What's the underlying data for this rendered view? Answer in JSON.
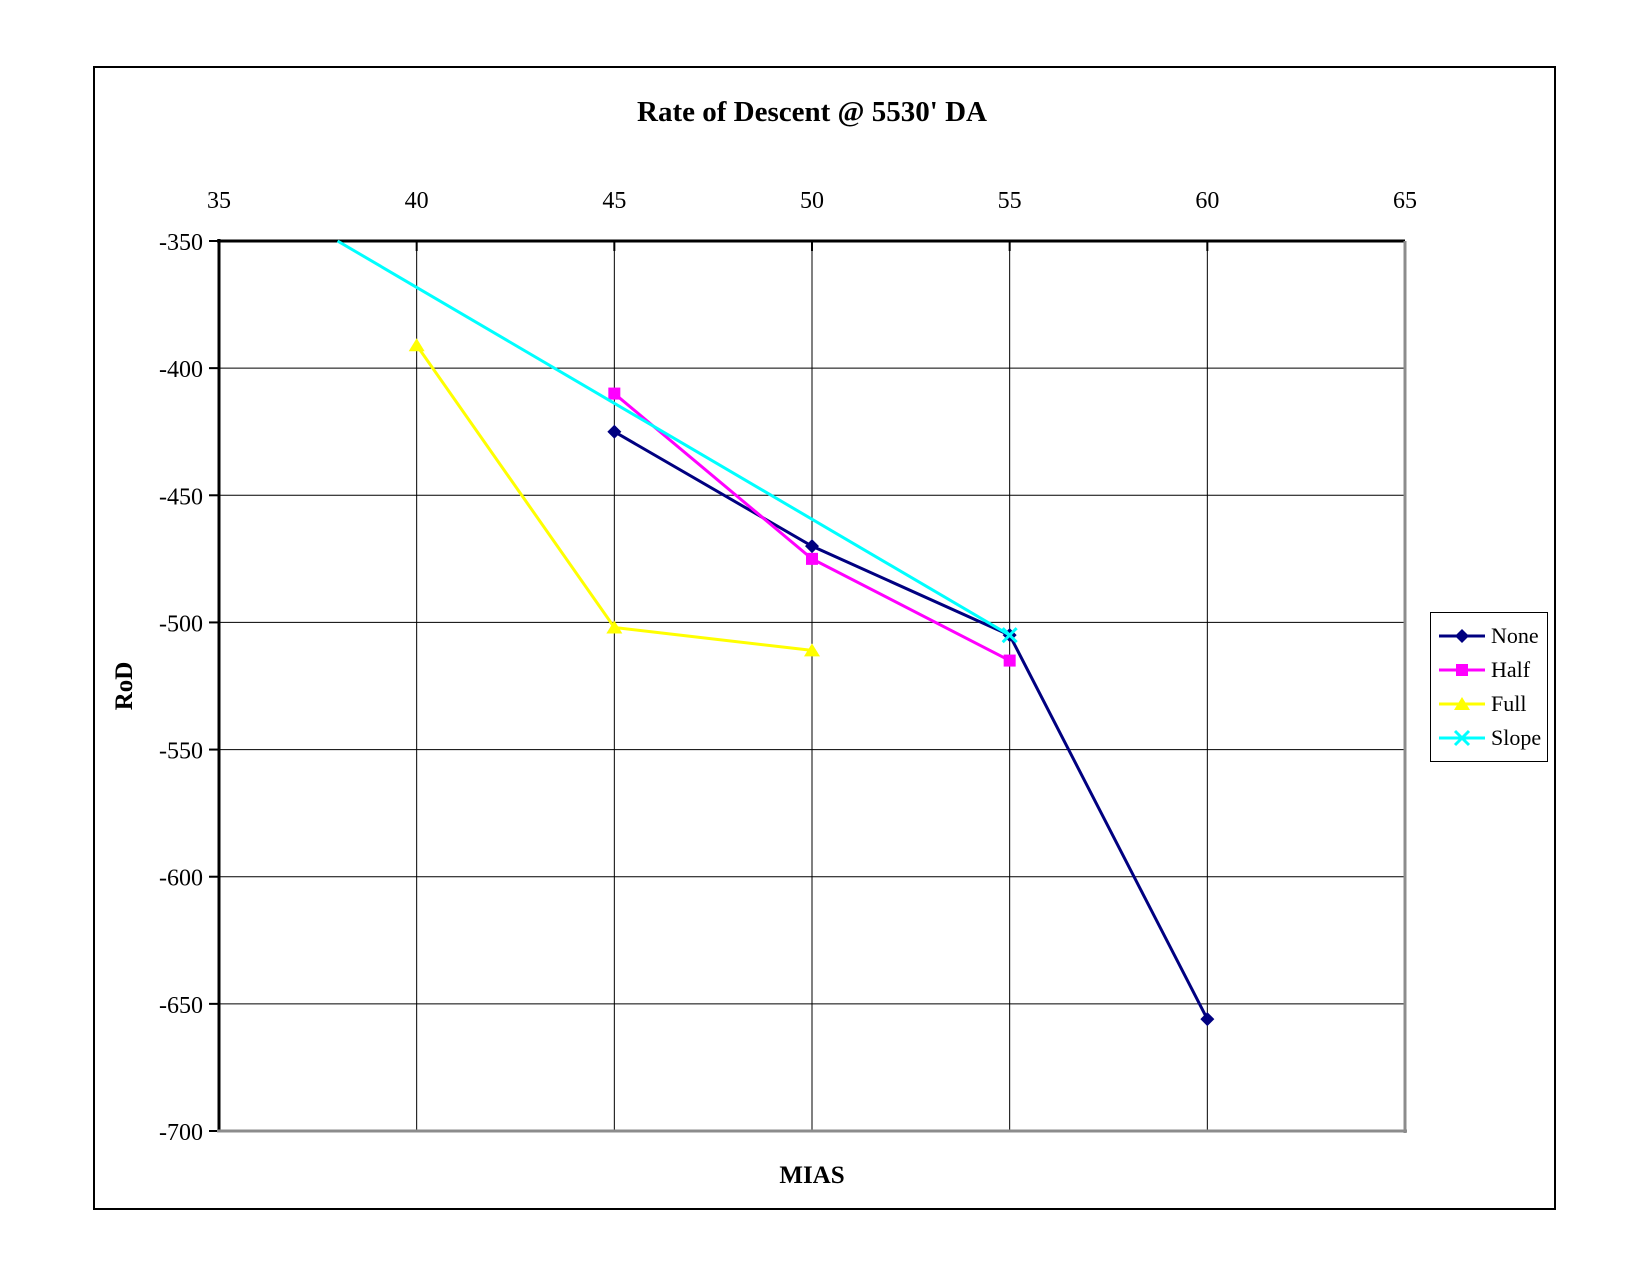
{
  "chart_data": {
    "type": "line",
    "title": "Rate of Descent @ 5530' DA",
    "xlabel": "MIAS",
    "ylabel": "RoD",
    "x_axis": {
      "min": 35,
      "max": 65,
      "ticks": [
        35,
        40,
        45,
        50,
        55,
        60,
        65
      ],
      "position": "top"
    },
    "y_axis": {
      "min": -700,
      "max": -350,
      "ticks": [
        -350,
        -400,
        -450,
        -500,
        -550,
        -600,
        -650,
        -700
      ],
      "position": "left"
    },
    "grid": true,
    "legend": {
      "position": "right",
      "entries": [
        "None",
        "Half",
        "Full",
        "Slope"
      ]
    },
    "series": [
      {
        "name": "None",
        "color": "#000080",
        "marker": "diamond",
        "points": [
          [
            45,
            -425
          ],
          [
            50,
            -470
          ],
          [
            55,
            -505
          ],
          [
            60,
            -656
          ]
        ]
      },
      {
        "name": "Half",
        "color": "#FF00FF",
        "marker": "square",
        "points": [
          [
            45,
            -410
          ],
          [
            50,
            -475
          ],
          [
            55,
            -515
          ]
        ]
      },
      {
        "name": "Full",
        "color": "#FFFF00",
        "marker": "triangle",
        "points": [
          [
            40,
            -391
          ],
          [
            45,
            -502
          ],
          [
            50,
            -511
          ]
        ]
      },
      {
        "name": "Slope",
        "color": "#00FFFF",
        "marker": "x",
        "points": [
          [
            38,
            -350
          ],
          [
            55,
            -505
          ]
        ],
        "marker_indices": [
          1
        ],
        "note": "straight reference line entering plot clipped at top edge"
      }
    ]
  },
  "colors": {
    "axis": "#000000",
    "plot_border": "#8C8C8C",
    "gridline": "#000000",
    "background": "#FFFFFF"
  }
}
